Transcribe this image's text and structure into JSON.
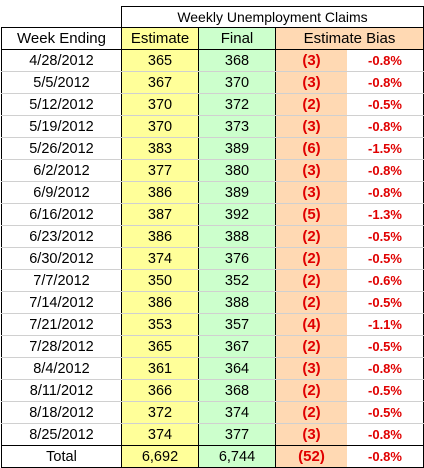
{
  "title": "Weekly Unemployment Claims",
  "headers": {
    "week_ending": "Week Ending",
    "estimate": "Estimate",
    "final": "Final",
    "estimate_bias": "Estimate Bias"
  },
  "rows": [
    {
      "week": "4/28/2012",
      "estimate": "365",
      "final": "368",
      "bias": "(3)",
      "bias_pct": "-0.8%"
    },
    {
      "week": "5/5/2012",
      "estimate": "367",
      "final": "370",
      "bias": "(3)",
      "bias_pct": "-0.8%"
    },
    {
      "week": "5/12/2012",
      "estimate": "370",
      "final": "372",
      "bias": "(2)",
      "bias_pct": "-0.5%"
    },
    {
      "week": "5/19/2012",
      "estimate": "370",
      "final": "373",
      "bias": "(3)",
      "bias_pct": "-0.8%"
    },
    {
      "week": "5/26/2012",
      "estimate": "383",
      "final": "389",
      "bias": "(6)",
      "bias_pct": "-1.5%"
    },
    {
      "week": "6/2/2012",
      "estimate": "377",
      "final": "380",
      "bias": "(3)",
      "bias_pct": "-0.8%"
    },
    {
      "week": "6/9/2012",
      "estimate": "386",
      "final": "389",
      "bias": "(3)",
      "bias_pct": "-0.8%"
    },
    {
      "week": "6/16/2012",
      "estimate": "387",
      "final": "392",
      "bias": "(5)",
      "bias_pct": "-1.3%"
    },
    {
      "week": "6/23/2012",
      "estimate": "386",
      "final": "388",
      "bias": "(2)",
      "bias_pct": "-0.5%"
    },
    {
      "week": "6/30/2012",
      "estimate": "374",
      "final": "376",
      "bias": "(2)",
      "bias_pct": "-0.5%"
    },
    {
      "week": "7/7/2012",
      "estimate": "350",
      "final": "352",
      "bias": "(2)",
      "bias_pct": "-0.6%"
    },
    {
      "week": "7/14/2012",
      "estimate": "386",
      "final": "388",
      "bias": "(2)",
      "bias_pct": "-0.5%"
    },
    {
      "week": "7/21/2012",
      "estimate": "353",
      "final": "357",
      "bias": "(4)",
      "bias_pct": "-1.1%"
    },
    {
      "week": "7/28/2012",
      "estimate": "365",
      "final": "367",
      "bias": "(2)",
      "bias_pct": "-0.5%"
    },
    {
      "week": "8/4/2012",
      "estimate": "361",
      "final": "364",
      "bias": "(3)",
      "bias_pct": "-0.8%"
    },
    {
      "week": "8/11/2012",
      "estimate": "366",
      "final": "368",
      "bias": "(2)",
      "bias_pct": "-0.5%"
    },
    {
      "week": "8/18/2012",
      "estimate": "372",
      "final": "374",
      "bias": "(2)",
      "bias_pct": "-0.5%"
    },
    {
      "week": "8/25/2012",
      "estimate": "374",
      "final": "377",
      "bias": "(3)",
      "bias_pct": "-0.8%"
    }
  ],
  "total": {
    "label": "Total",
    "estimate": "6,692",
    "final": "6,744",
    "bias": "(52)",
    "bias_pct": "-0.8%"
  },
  "colors": {
    "estimate_fill": "#ffff99",
    "final_fill": "#ccffcc",
    "bias_fill": "#ffd9b3",
    "bias_text": "#e00000"
  }
}
